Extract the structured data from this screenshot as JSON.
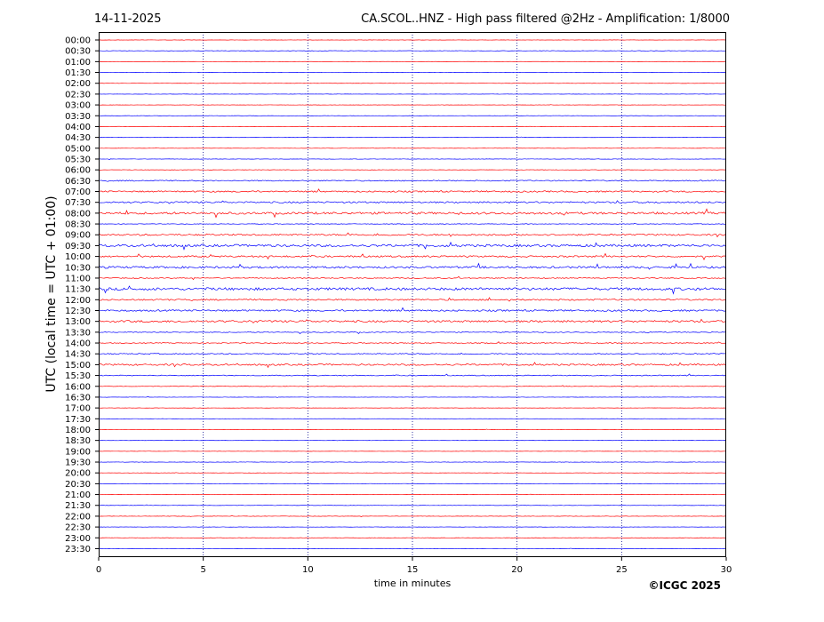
{
  "header": {
    "date": "14-11-2025",
    "title": "CA.SCOL..HNZ - High pass filtered @2Hz - Amplification: 1/8000"
  },
  "copyright": "©ICGC 2025",
  "colors": {
    "odd_rows": "#ff0000",
    "even_rows": "#0000ff",
    "grid": "#00008b"
  },
  "chart_data": {
    "type": "line",
    "title": "CA.SCOL..HNZ - High pass filtered @2Hz - Amplification: 1/8000",
    "xlabel": "time in minutes",
    "ylabel": "UTC (local time = UTC + 01:00)",
    "xlim": [
      0,
      30
    ],
    "x_ticks": [
      "0",
      "5",
      "10",
      "15",
      "20",
      "25",
      "30"
    ],
    "grid": "vertical dotted at 5-minute intervals",
    "row_labels": [
      "00:00",
      "00:30",
      "01:00",
      "01:30",
      "02:00",
      "02:30",
      "03:00",
      "03:30",
      "04:00",
      "04:30",
      "05:00",
      "05:30",
      "06:00",
      "06:30",
      "07:00",
      "07:30",
      "08:00",
      "08:30",
      "09:00",
      "09:30",
      "10:00",
      "10:30",
      "11:00",
      "11:30",
      "12:00",
      "12:30",
      "13:00",
      "13:30",
      "14:00",
      "14:30",
      "15:00",
      "15:30",
      "16:00",
      "16:30",
      "17:00",
      "17:30",
      "18:00",
      "18:30",
      "19:00",
      "19:30",
      "20:00",
      "20:30",
      "21:00",
      "21:30",
      "22:00",
      "22:30",
      "23:00",
      "23:30"
    ],
    "row_activity": [
      0.3,
      0.4,
      0.3,
      0.3,
      0.3,
      0.3,
      0.3,
      0.3,
      0.4,
      0.3,
      0.3,
      0.4,
      0.4,
      1.2,
      1.6,
      1.8,
      2.4,
      0.6,
      1.8,
      2.6,
      1.8,
      2.2,
      1.0,
      2.8,
      1.6,
      1.8,
      2.2,
      0.9,
      0.9,
      1.2,
      1.8,
      1.0,
      0.5,
      0.3,
      0.3,
      0.3,
      0.3,
      0.3,
      0.3,
      0.4,
      0.3,
      0.4,
      0.3,
      0.4,
      0.4,
      0.3,
      0.4,
      0.3
    ]
  }
}
